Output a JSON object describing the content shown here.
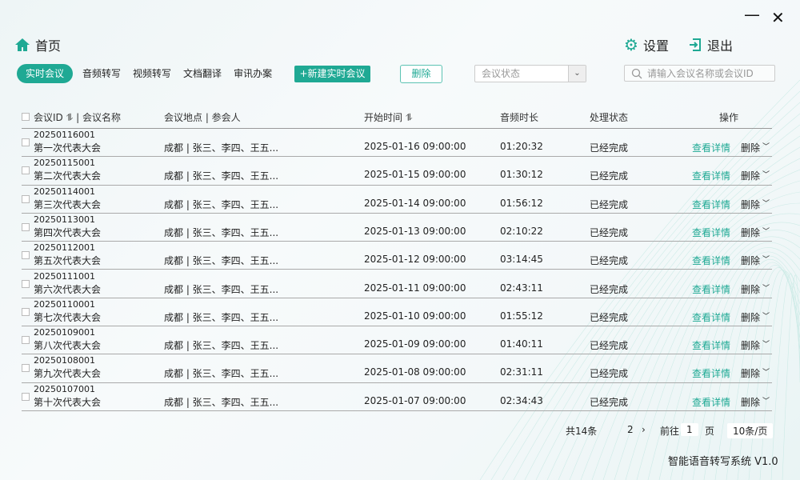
{
  "window": {
    "minimize": "—",
    "close": "✕"
  },
  "header": {
    "home": "首页",
    "settings": "设置",
    "logout": "退出"
  },
  "tabs": [
    {
      "label": "实时会议",
      "active": true
    },
    {
      "label": "音频转写"
    },
    {
      "label": "视频转写"
    },
    {
      "label": "文档翻译"
    },
    {
      "label": "审讯办案"
    }
  ],
  "toolbar": {
    "new_label": "+新建实时会议",
    "delete_label": "删除",
    "status_placeholder": "会议状态",
    "search_placeholder": "请输入会议名称或会议ID"
  },
  "table": {
    "headers": {
      "id_name": "会议ID ⥮ | 会议名称",
      "loc": "会议地点 | 参会人",
      "time": "开始时间 ⥮",
      "dur": "音频时长",
      "status": "处理状态",
      "ops": "操作"
    },
    "rows": [
      {
        "id": "20250116001",
        "name": "第一次代表大会",
        "loc": "成都 | 张三、李四、王五...",
        "time": "2025-01-16  09:00:00",
        "dur": "01:20:32",
        "status": "已经完成",
        "view": "查看详情",
        "del": "删除"
      },
      {
        "id": "20250115001",
        "name": "第二次代表大会",
        "loc": "成都 | 张三、李四、王五...",
        "time": "2025-01-15  09:00:00",
        "dur": "01:30:12",
        "status": "已经完成",
        "view": "查看详情",
        "del": "删除"
      },
      {
        "id": "20250114001",
        "name": "第三次代表大会",
        "loc": "成都 | 张三、李四、王五...",
        "time": "2025-01-14  09:00:00",
        "dur": "01:56:12",
        "status": "已经完成",
        "view": "查看详情",
        "del": "删除"
      },
      {
        "id": "20250113001",
        "name": "第四次代表大会",
        "loc": "成都 | 张三、李四、王五...",
        "time": "2025-01-13  09:00:00",
        "dur": "02:10:22",
        "status": "已经完成",
        "view": "查看详情",
        "del": "删除"
      },
      {
        "id": "20250112001",
        "name": "第五次代表大会",
        "loc": "成都 | 张三、李四、王五...",
        "time": "2025-01-12  09:00:00",
        "dur": "03:14:45",
        "status": "已经完成",
        "view": "查看详情",
        "del": "删除"
      },
      {
        "id": "20250111001",
        "name": "第六次代表大会",
        "loc": "成都 | 张三、李四、王五...",
        "time": "2025-01-11  09:00:00",
        "dur": "02:43:11",
        "status": "已经完成",
        "view": "查看详情",
        "del": "删除"
      },
      {
        "id": "20250110001",
        "name": "第七次代表大会",
        "loc": "成都 | 张三、李四、王五...",
        "time": "2025-01-10  09:00:00",
        "dur": "01:55:12",
        "status": "已经完成",
        "view": "查看详情",
        "del": "删除"
      },
      {
        "id": "20250109001",
        "name": "第八次代表大会",
        "loc": "成都 | 张三、李四、王五...",
        "time": "2025-01-09  09:00:00",
        "dur": "01:40:11",
        "status": "已经完成",
        "view": "查看详情",
        "del": "删除"
      },
      {
        "id": "20250108001",
        "name": "第九次代表大会",
        "loc": "成都 | 张三、李四、王五...",
        "time": "2025-01-08  09:00:00",
        "dur": "02:31:11",
        "status": "已经完成",
        "view": "查看详情",
        "del": "删除"
      },
      {
        "id": "20250107001",
        "name": "第十次代表大会",
        "loc": "成都 | 张三、李四、王五...",
        "time": "2025-01-07  09:00:00",
        "dur": "02:34:43",
        "status": "已经完成",
        "view": "查看详情",
        "del": "删除"
      }
    ]
  },
  "pagination": {
    "total": "共14条",
    "page2": "2",
    "next": "›",
    "goto": "前往",
    "goto_value": "1",
    "page_unit": "页",
    "page_size": "10条/页"
  },
  "footer": {
    "version": "智能语音转写系统 V1.0"
  },
  "colors": {
    "accent": "#1fa994"
  }
}
